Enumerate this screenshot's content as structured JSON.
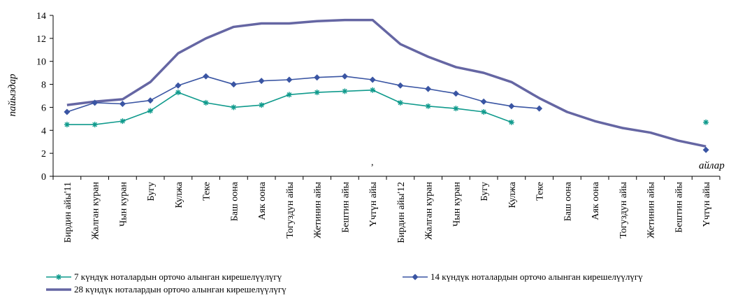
{
  "chart_data": {
    "type": "line",
    "categories": [
      "Бирдин айы'11",
      "Жалган куран",
      "Чын куран",
      "Бугу",
      "Кулжа",
      "Теке",
      "Баш оона",
      "Аяк оона",
      "Тогуздун айы",
      "Жетинин айы",
      "Бештин айы",
      "Үчтүн айы",
      "Бирдин айы'12",
      "Жалган куран",
      "Чын куран",
      "Бугу",
      "Кулжа",
      "Теке",
      "Баш оона",
      "Аяк оона",
      "Тогуздун айы",
      "Жетинин айы",
      "Бештин айы",
      "Үчтүн айы"
    ],
    "series": [
      {
        "name": "7 күндүк ноталардын орточо алынган кирешелүүлүгү",
        "color": "#0f9a8c",
        "marker": "asterisk",
        "values": [
          4.5,
          4.5,
          4.8,
          5.7,
          7.3,
          6.4,
          6.0,
          6.2,
          7.1,
          7.3,
          7.4,
          7.5,
          6.4,
          6.1,
          5.9,
          5.6,
          4.7,
          null,
          null,
          null,
          null,
          null,
          null,
          4.7
        ]
      },
      {
        "name": "14 күндүк ноталардын орточо алынган кирешелүүлүгү",
        "color": "#3a55a3",
        "marker": "diamond",
        "values": [
          5.6,
          6.4,
          6.3,
          6.6,
          7.9,
          8.7,
          8.0,
          8.3,
          8.4,
          8.6,
          8.7,
          8.4,
          7.9,
          7.6,
          7.2,
          6.5,
          6.1,
          5.9,
          null,
          null,
          null,
          null,
          null,
          2.3
        ]
      },
      {
        "name": "28 күндүк ноталардын орточо алынган кирешелүүлүгү",
        "color": "#6566a3",
        "marker": "none",
        "values": [
          6.2,
          6.5,
          6.7,
          8.2,
          10.7,
          12.0,
          13.0,
          13.3,
          13.3,
          13.5,
          13.6,
          13.6,
          11.5,
          10.4,
          9.5,
          9.0,
          8.2,
          6.8,
          5.6,
          4.8,
          4.2,
          3.8,
          3.1,
          2.6
        ]
      }
    ],
    "ylabel": "пайыздар",
    "xlabel": "айлар",
    "ylim": [
      0,
      14
    ],
    "yticks": [
      0,
      2,
      4,
      6,
      8,
      10,
      12,
      14
    ],
    "stray_mark": ",",
    "grid": false,
    "legend_position": "bottom"
  }
}
